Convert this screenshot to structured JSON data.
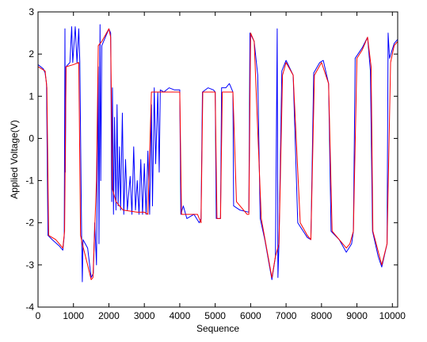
{
  "chart_data": {
    "type": "line",
    "x_label": "Sequence",
    "y_label": "Applied Voltage(V)",
    "xlim": [
      0,
      10150
    ],
    "ylim": [
      -4,
      3
    ],
    "xticks": [
      0,
      1000,
      2000,
      3000,
      4000,
      5000,
      6000,
      7000,
      8000,
      9000,
      10000
    ],
    "yticks": [
      -4,
      -3,
      -2,
      -1,
      0,
      1,
      2,
      3
    ],
    "grid": false,
    "series": [
      {
        "color": "#0000ff",
        "x": [
          0,
          150,
          200,
          240,
          280,
          400,
          600,
          700,
          740,
          760,
          770,
          790,
          900,
          950,
          980,
          1050,
          1100,
          1150,
          1180,
          1230,
          1250,
          1270,
          1400,
          1500,
          1560,
          1600,
          1650,
          1700,
          1720,
          1750,
          1770,
          1800,
          1900,
          2000,
          2050,
          2080,
          2100,
          2130,
          2160,
          2200,
          2230,
          2260,
          2300,
          2330,
          2380,
          2420,
          2470,
          2520,
          2600,
          2650,
          2700,
          2750,
          2800,
          2850,
          2900,
          2950,
          3000,
          3050,
          3100,
          3150,
          3200,
          3230,
          3280,
          3320,
          3380,
          3420,
          3450,
          3550,
          3700,
          3850,
          4000,
          4030,
          4100,
          4200,
          4400,
          4550,
          4600,
          4640,
          4800,
          4950,
          5000,
          5030,
          5150,
          5180,
          5300,
          5400,
          5500,
          5520,
          5700,
          5950,
          5980,
          6100,
          6200,
          6270,
          6400,
          6600,
          6700,
          6750,
          6770,
          6800,
          6880,
          7000,
          7200,
          7330,
          7600,
          7700,
          7780,
          7950,
          8050,
          8200,
          8270,
          8500,
          8700,
          8850,
          8900,
          8950,
          9150,
          9300,
          9380,
          9440,
          9600,
          9700,
          9850,
          9880,
          9920,
          10050,
          10150
        ],
        "values": [
          1.75,
          1.65,
          1.55,
          1.3,
          -2.3,
          -2.4,
          -2.55,
          -2.65,
          -2.3,
          2.6,
          -0.8,
          1.7,
          1.8,
          2.65,
          1.8,
          2.65,
          1.8,
          2.6,
          1.8,
          -2.3,
          -3.4,
          -2.4,
          -2.6,
          -3.3,
          -3.2,
          -2.0,
          -3.0,
          1.7,
          -2.5,
          2.7,
          -1.0,
          2.2,
          2.4,
          2.6,
          2.5,
          -1.5,
          1.2,
          -1.8,
          0.5,
          -1.7,
          0.8,
          -1.6,
          -0.2,
          -1.7,
          0.6,
          -1.8,
          -0.5,
          -1.7,
          -0.9,
          -1.8,
          -0.2,
          -1.7,
          -1.0,
          -1.8,
          -0.5,
          -1.8,
          -0.6,
          -1.8,
          -0.3,
          -1.8,
          0.8,
          -1.6,
          1.2,
          -0.6,
          1.1,
          -0.8,
          1.15,
          1.1,
          1.2,
          1.15,
          1.15,
          -1.8,
          -1.6,
          -1.9,
          -1.8,
          -2.0,
          -1.9,
          1.1,
          1.2,
          1.15,
          1.1,
          -1.9,
          -1.9,
          1.2,
          1.2,
          1.3,
          1.1,
          -1.6,
          -1.7,
          -1.75,
          2.5,
          2.3,
          1.5,
          -1.9,
          -2.4,
          -3.35,
          -2.8,
          2.6,
          -3.3,
          -2.5,
          1.6,
          1.85,
          1.5,
          -2.0,
          -2.35,
          -2.4,
          1.55,
          1.8,
          1.85,
          1.3,
          -2.2,
          -2.4,
          -2.7,
          -2.5,
          -2.2,
          1.9,
          2.15,
          2.4,
          1.6,
          -2.2,
          -2.8,
          -3.05,
          -2.5,
          2.5,
          1.9,
          2.25,
          2.35
        ]
      },
      {
        "color": "#ff0000",
        "x": [
          0,
          200,
          250,
          300,
          500,
          700,
          750,
          790,
          1000,
          1150,
          1200,
          1250,
          1400,
          1500,
          1550,
          1650,
          1700,
          1800,
          2000,
          2050,
          2100,
          2200,
          2400,
          2800,
          3000,
          3100,
          3200,
          3300,
          4000,
          4050,
          4500,
          4600,
          4650,
          5000,
          5050,
          5150,
          5200,
          5500,
          5600,
          5900,
          5950,
          6000,
          6100,
          6300,
          6600,
          6700,
          6800,
          6900,
          7000,
          7200,
          7400,
          7600,
          7700,
          7800,
          8000,
          8200,
          8300,
          8700,
          8800,
          8900,
          9000,
          9150,
          9300,
          9400,
          9450,
          9700,
          9850,
          9950,
          10050,
          10150
        ],
        "values": [
          1.7,
          1.6,
          1.2,
          -2.3,
          -2.4,
          -2.6,
          -2.2,
          1.7,
          1.75,
          1.8,
          -2.3,
          -2.5,
          -3.0,
          -3.35,
          -3.3,
          -1.0,
          2.2,
          2.3,
          2.6,
          2.4,
          -1.2,
          -1.5,
          -1.7,
          -1.75,
          -1.75,
          -1.8,
          1.1,
          1.1,
          1.1,
          -1.8,
          -1.8,
          -2.0,
          1.1,
          1.1,
          -1.9,
          -1.9,
          1.1,
          1.1,
          -1.5,
          -1.8,
          -1.8,
          2.5,
          2.3,
          -1.9,
          -3.3,
          -2.8,
          -2.5,
          1.5,
          1.8,
          1.5,
          -2.0,
          -2.3,
          -2.4,
          1.5,
          1.8,
          1.3,
          -2.2,
          -2.6,
          -2.5,
          -2.2,
          1.9,
          2.1,
          2.4,
          1.7,
          -2.2,
          -3.0,
          -2.5,
          1.8,
          2.2,
          2.3
        ]
      }
    ]
  }
}
